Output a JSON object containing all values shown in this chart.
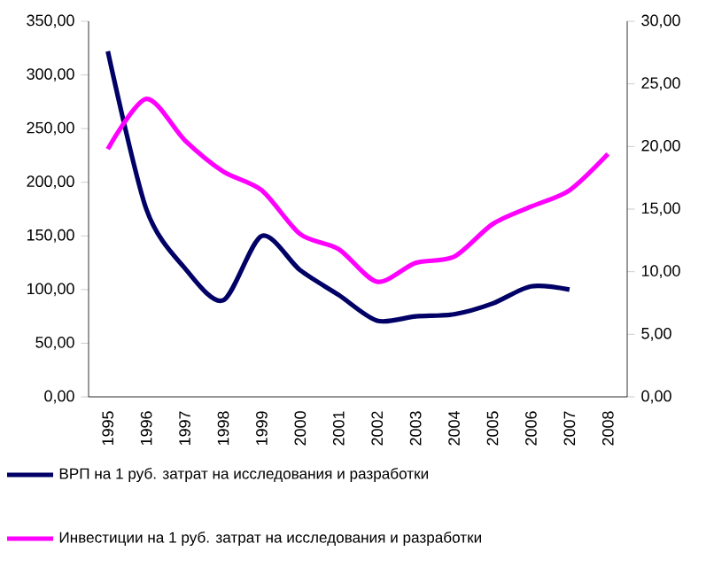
{
  "chart_data": {
    "type": "line",
    "categories": [
      "1995",
      "1996",
      "1997",
      "1998",
      "1999",
      "2000",
      "2001",
      "2002",
      "2003",
      "2004",
      "2005",
      "2006",
      "2007",
      "2008"
    ],
    "series": [
      {
        "name": "ВРП на 1 руб. затрат на исследования и разработки",
        "color": "#000066",
        "values": [
          322,
          175,
          120,
          90,
          150,
          118,
          95,
          71,
          75,
          77,
          87,
          103,
          100,
          null
        ]
      },
      {
        "name": "Инвестиции на 1 руб. затрат на исследования и разработки",
        "color": "#ff00ff",
        "axis": "y2",
        "values": [
          19.8,
          23.8,
          20.5,
          18,
          16.5,
          13,
          11.8,
          9.2,
          10.7,
          11.2,
          13.8,
          15.2,
          16.5,
          19.4
        ]
      }
    ],
    "ylim": [
      0,
      350
    ],
    "yticks": [
      {
        "value": 0,
        "label": "0,00"
      },
      {
        "value": 50,
        "label": "50,00"
      },
      {
        "value": 100,
        "label": "100,00"
      },
      {
        "value": 150,
        "label": "150,00"
      },
      {
        "value": 200,
        "label": "200,00"
      },
      {
        "value": 250,
        "label": "250,00"
      },
      {
        "value": 300,
        "label": "300,00"
      },
      {
        "value": 350,
        "label": "350,00"
      }
    ],
    "y2lim": [
      0,
      30
    ],
    "y2ticks": [
      {
        "value": 0,
        "label": "0,00"
      },
      {
        "value": 5,
        "label": "5,00"
      },
      {
        "value": 10,
        "label": "10,00"
      },
      {
        "value": 15,
        "label": "15,00"
      },
      {
        "value": 20,
        "label": "20,00"
      },
      {
        "value": 25,
        "label": "25,00"
      },
      {
        "value": 30,
        "label": "30,00"
      }
    ],
    "legend": "bottom",
    "marker": "none",
    "line_style": "solid",
    "grid": false
  }
}
